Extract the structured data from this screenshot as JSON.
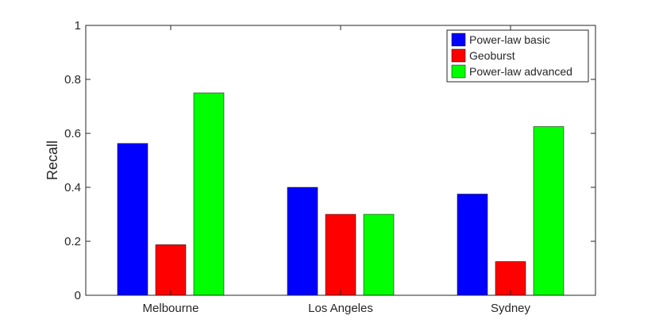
{
  "chart_data": {
    "type": "bar",
    "categories": [
      "Melbourne",
      "Los Angeles",
      "Sydney"
    ],
    "series": [
      {
        "name": "Power-law basic",
        "values": [
          0.5625,
          0.4,
          0.375
        ],
        "color": "#0000ff"
      },
      {
        "name": "Geoburst",
        "values": [
          0.1875,
          0.3,
          0.125
        ],
        "color": "#ff0000"
      },
      {
        "name": "Power-law advanced",
        "values": [
          0.75,
          0.3,
          0.625
        ],
        "color": "#00ff00"
      }
    ],
    "ylabel": "Recall",
    "ylim": [
      0,
      1
    ],
    "yticks": [
      "0",
      "0.2",
      "0.4",
      "0.6",
      "0.8",
      "1"
    ],
    "legend_position": "top-right",
    "grid": false
  }
}
